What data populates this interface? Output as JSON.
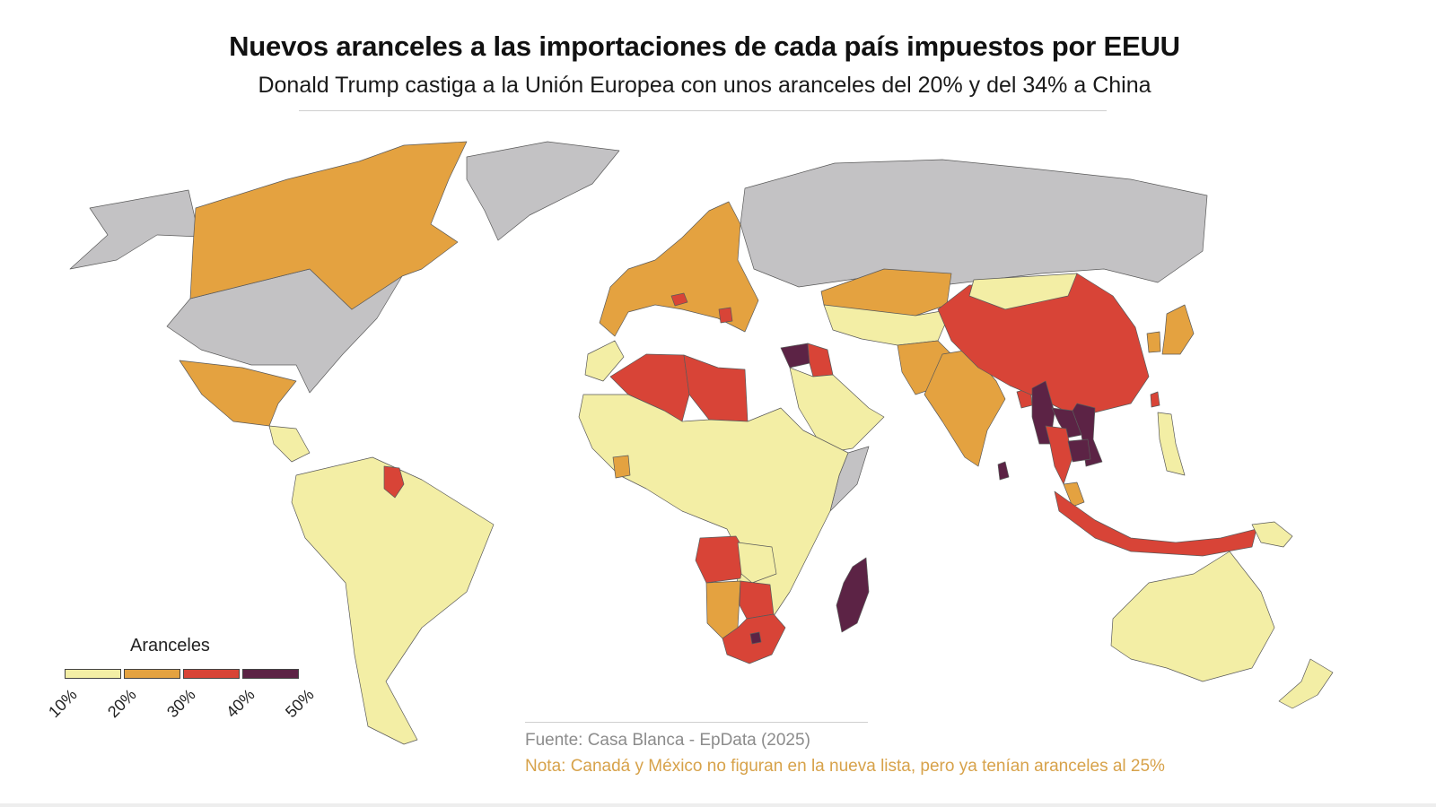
{
  "header": {
    "title": "Nuevos aranceles a las importaciones de cada país impuestos por EEUU",
    "subtitle": "Donald Trump castiga a la Unión Europea con unos aranceles del 20% y del 34% a China"
  },
  "legend": {
    "title": "Aranceles",
    "ticks": [
      "10%",
      "20%",
      "30%",
      "40%",
      "50%"
    ],
    "bins": [
      {
        "from": 10,
        "to": 20,
        "color": "#f3eea5"
      },
      {
        "from": 20,
        "to": 30,
        "color": "#e4a240"
      },
      {
        "from": 30,
        "to": 40,
        "color": "#d84437"
      },
      {
        "from": 40,
        "to": 50,
        "color": "#5c2345"
      }
    ],
    "no_tariff_color": "#c3c2c4"
  },
  "footer": {
    "source": "Fuente: Casa Blanca - EpData (2025)",
    "note": "Nota: Canadá y México no figuran en la nueva lista, pero ya tenían aranceles al 25%"
  },
  "map_data": {
    "type": "choropleth",
    "regions": [
      {
        "name": "Estados Unidos",
        "value": null
      },
      {
        "name": "Alaska",
        "value": null
      },
      {
        "name": "Rusia",
        "value": null
      },
      {
        "name": "Groenlandia",
        "value": null
      },
      {
        "name": "Canadá",
        "value": 25
      },
      {
        "name": "México",
        "value": 25
      },
      {
        "name": "Centroamérica",
        "value": 10
      },
      {
        "name": "Sudamérica",
        "value": 10
      },
      {
        "name": "Guyana",
        "value": 38
      },
      {
        "name": "Unión Europea",
        "value": 20
      },
      {
        "name": "Suiza",
        "value": 31
      },
      {
        "name": "Serbia",
        "value": 37
      },
      {
        "name": "Marruecos",
        "value": 10
      },
      {
        "name": "Argelia",
        "value": 30
      },
      {
        "name": "Libia",
        "value": 31
      },
      {
        "name": "Siria",
        "value": 41
      },
      {
        "name": "Irak",
        "value": 39
      },
      {
        "name": "Península Arábiga",
        "value": 10
      },
      {
        "name": "Somalia",
        "value": null
      },
      {
        "name": "África subsahariana",
        "value": 10
      },
      {
        "name": "Costa de Marfil",
        "value": 21
      },
      {
        "name": "Angola",
        "value": 32
      },
      {
        "name": "Zambia",
        "value": 17
      },
      {
        "name": "Namibia",
        "value": 21
      },
      {
        "name": "Botsuana",
        "value": 37
      },
      {
        "name": "Sudáfrica",
        "value": 30
      },
      {
        "name": "Lesoto",
        "value": 50
      },
      {
        "name": "Madagascar",
        "value": 47
      },
      {
        "name": "Kazajistán",
        "value": 27
      },
      {
        "name": "Asia Central",
        "value": 10
      },
      {
        "name": "Pakistán",
        "value": 29
      },
      {
        "name": "India",
        "value": 26
      },
      {
        "name": "Sri Lanka",
        "value": 44
      },
      {
        "name": "Bangladés",
        "value": 37
      },
      {
        "name": "China",
        "value": 34
      },
      {
        "name": "Mongolia",
        "value": 10
      },
      {
        "name": "Myanmar",
        "value": 44
      },
      {
        "name": "Laos",
        "value": 48
      },
      {
        "name": "Tailandia",
        "value": 36
      },
      {
        "name": "Vietnam",
        "value": 46
      },
      {
        "name": "Camboya",
        "value": 49
      },
      {
        "name": "Malasia",
        "value": 24
      },
      {
        "name": "Indonesia",
        "value": 32
      },
      {
        "name": "Filipinas",
        "value": 17
      },
      {
        "name": "Taiwán",
        "value": 32
      },
      {
        "name": "Corea del Sur",
        "value": 25
      },
      {
        "name": "Japón",
        "value": 24
      },
      {
        "name": "Papúa Nueva Guinea",
        "value": 10
      },
      {
        "name": "Australia",
        "value": 10
      },
      {
        "name": "Nueva Zelanda",
        "value": 10
      }
    ]
  }
}
